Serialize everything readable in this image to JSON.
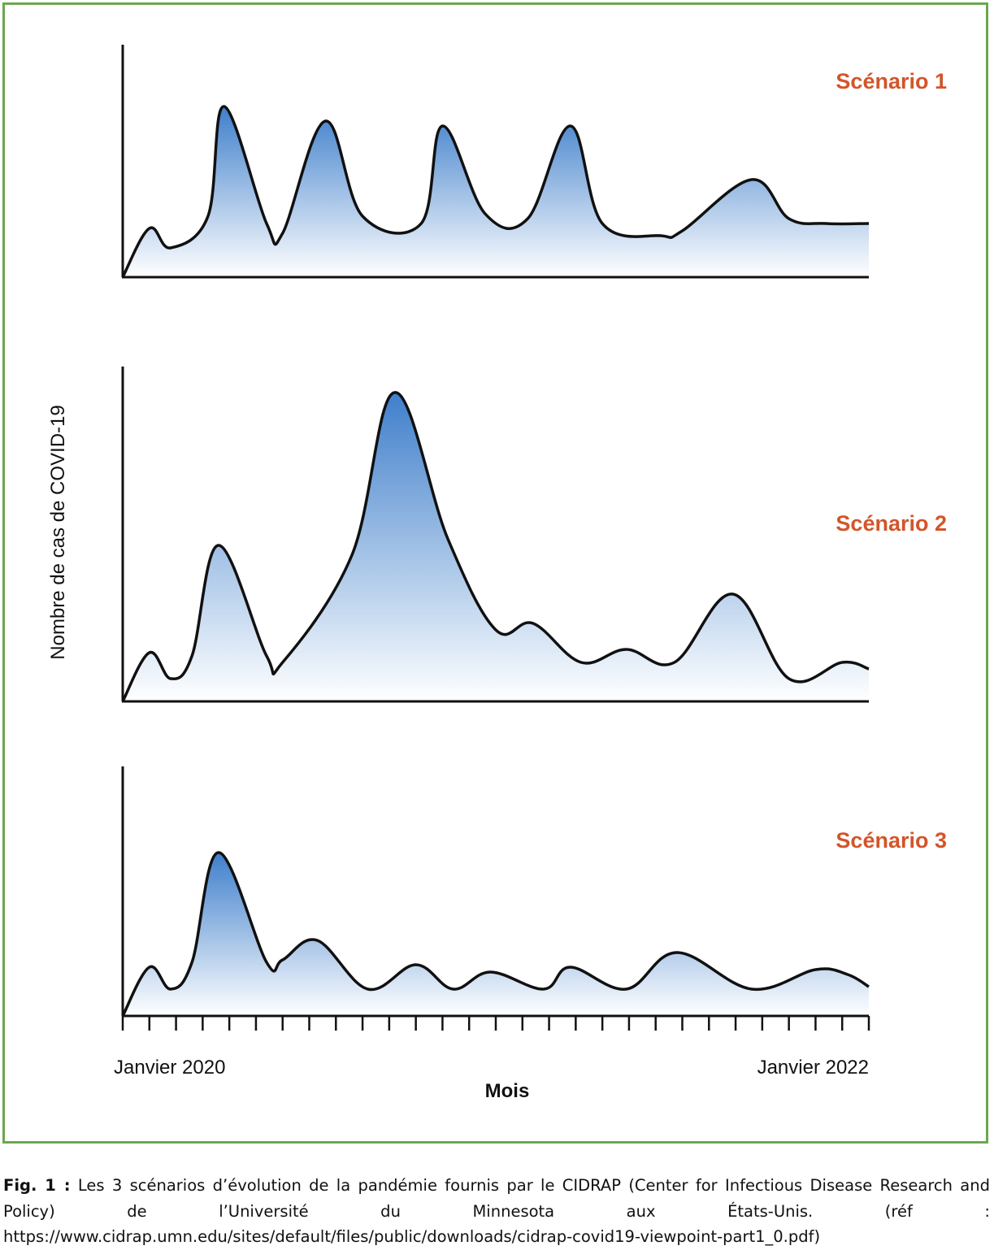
{
  "chart_data": {
    "type": "area",
    "ylabel": "Nombre de cas de COVID-19",
    "xlabel": "Mois",
    "x_tick_labels": [
      "Janvier 2020",
      "Janvier 2022"
    ],
    "x_tick_count": 29,
    "title_color": "#d2552a",
    "fill_gradient": [
      "#3f7fcb",
      "#ffffff"
    ],
    "panels": [
      {
        "name": "Scénario 1",
        "x": [
          0,
          1,
          1.8,
          3.2,
          3.8,
          5.4,
          6,
          7.6,
          9,
          11.2,
          12,
          13.6,
          15.2,
          16.8,
          18,
          20.2,
          21,
          23.6,
          25,
          26.4,
          28
        ],
        "y": [
          0,
          20,
          12,
          25,
          70,
          22,
          18,
          64,
          25,
          22,
          62,
          26,
          24,
          62,
          22,
          17,
          19,
          40,
          24,
          22,
          22
        ]
      },
      {
        "name": "Scénario 2",
        "x": [
          0,
          1,
          1.8,
          2.6,
          3.6,
          5.4,
          6,
          8.6,
          10.2,
          12.2,
          14,
          15.4,
          17.2,
          18.9,
          20.7,
          22.9,
          25,
          27,
          28
        ],
        "y": [
          0,
          15,
          7,
          14,
          48,
          14,
          12,
          45,
          95,
          50,
          22,
          24,
          12,
          16,
          12,
          33,
          7,
          12,
          10
        ]
      },
      {
        "name": "Scénario 3",
        "x": [
          0,
          1,
          1.8,
          2.6,
          3.6,
          5.4,
          6,
          7.3,
          9.2,
          11,
          12.4,
          13.8,
          15.8,
          16.8,
          18.9,
          20.8,
          23.6,
          26,
          27.2,
          28
        ],
        "y": [
          0,
          20,
          11,
          22,
          67,
          22,
          23,
          31,
          11,
          21,
          11,
          18,
          11,
          20,
          11,
          26,
          11,
          19,
          17,
          12
        ]
      }
    ]
  },
  "caption": {
    "label": "Fig. 1 :",
    "text": " Les 3 scénarios d’évolution de la pandémie fournis par le CIDRAP (Center for Infectious Disease Research and Policy) de l’Université du Minnesota aux États-Unis. (réf : https://www.cidrap.umn.edu/sites/default/files/public/downloads/cidrap-covid19-viewpoint-part1_0.pdf)"
  }
}
